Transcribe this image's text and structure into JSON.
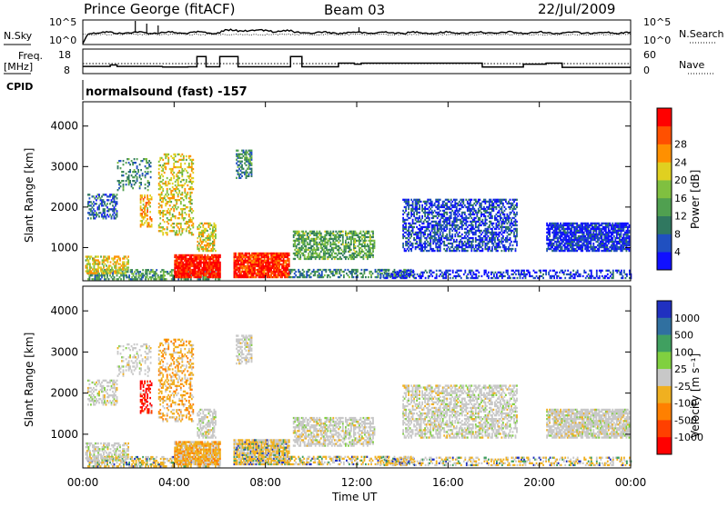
{
  "header": {
    "station": "Prince George (fitACF)",
    "beam": "Beam 03",
    "date": "22/Jul/2009"
  },
  "top_panels": {
    "nsky_label": "N.Sky",
    "nsearch_label": "N.Search",
    "nsky_ticks": [
      "10^5",
      "10^0"
    ],
    "nsearch_ticks": [
      "10^5",
      "10^0"
    ],
    "freq_label_1": "Freq.",
    "freq_label_2": "[MHz]",
    "freq_ticks": [
      "18",
      "8"
    ],
    "nave_label": "Nave",
    "nave_ticks": [
      "60",
      "0"
    ],
    "cpid_label": "CPID",
    "cpid_value": "normalsound (fast) -157"
  },
  "chart_data": [
    {
      "type": "heatmap",
      "quantity": "power",
      "ylabel": "Slant Range [km]",
      "ylim": [
        180,
        4600
      ],
      "yticks": [
        1000,
        2000,
        3000,
        4000
      ],
      "xlim_hours": [
        0,
        24
      ],
      "colorbar": {
        "label": "Power [dB]",
        "ticks": [
          "4",
          "8",
          "12",
          "16",
          "20",
          "24",
          "28"
        ],
        "colors": [
          "#1010ff",
          "#2050c0",
          "#307860",
          "#50a050",
          "#80c040",
          "#e0d020",
          "#ff9000",
          "#ff5000",
          "#ff0000"
        ]
      }
    },
    {
      "type": "heatmap",
      "quantity": "velocity",
      "ylabel": "Slant Range [km]",
      "ylim": [
        180,
        4600
      ],
      "yticks": [
        1000,
        2000,
        3000,
        4000
      ],
      "xlim_hours": [
        0,
        24
      ],
      "xticks": [
        "00:00",
        "04:00",
        "08:00",
        "12:00",
        "16:00",
        "20:00",
        "00:00"
      ],
      "xlabel": "Time UT",
      "colorbar": {
        "label": "Velocity [m s⁻¹]",
        "ticks": [
          "1000",
          "500",
          "100",
          "25",
          "-25",
          "-100",
          "-500",
          "-1000"
        ],
        "colors": [
          "#2030c0",
          "#3070a0",
          "#40a060",
          "#80d040",
          "#c8c8c8",
          "#f0b020",
          "#ff8000",
          "#ff4000",
          "#ff0000"
        ]
      }
    }
  ]
}
